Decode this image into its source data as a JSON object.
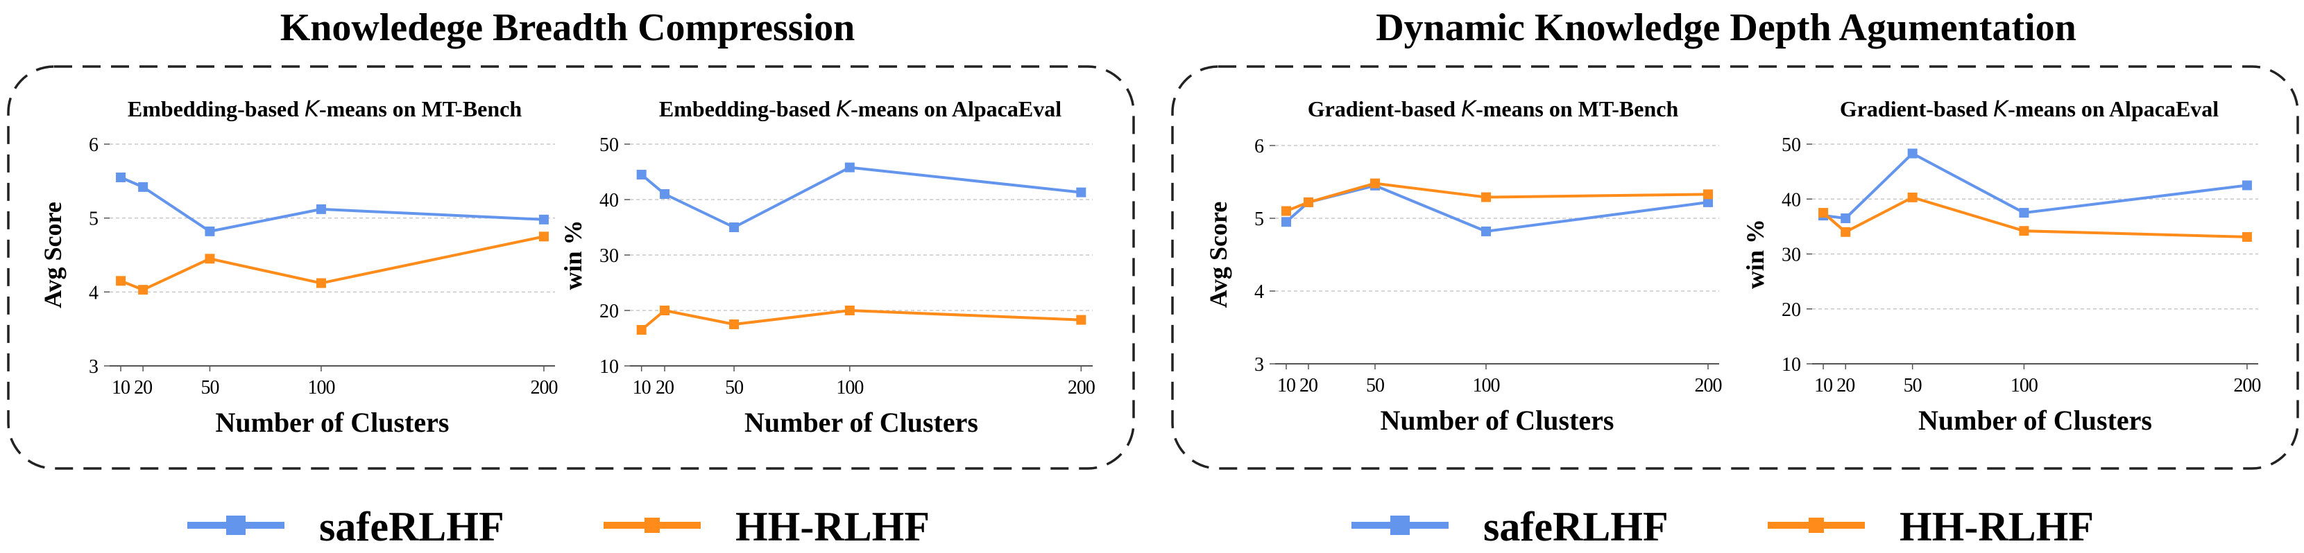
{
  "colors": {
    "safe": "#6495ED",
    "hh": "#FF8C1A",
    "grid": "#c8c8c8",
    "axis": "#555555",
    "text": "#000000",
    "box": "#222222"
  },
  "groups": [
    {
      "title": "Knowledege Breadth Compression"
    },
    {
      "title": "Dynamic Knowledge Depth Agumentation"
    }
  ],
  "legend": {
    "items": [
      {
        "label": "safeRLHF",
        "color": "#6495ED"
      },
      {
        "label": "HH-RLHF",
        "color": "#FF8C1A"
      }
    ]
  },
  "chart_data": [
    {
      "type": "line",
      "title_parts": [
        "Embedding-based ",
        "K",
        "-means on MT-Bench"
      ],
      "xlabel": "Number of Clusters",
      "ylabel": "Avg Score",
      "x": [
        10,
        20,
        50,
        100,
        200
      ],
      "xticks": [
        10,
        20,
        50,
        100,
        200
      ],
      "xtick_labels": [
        "10",
        "20",
        "50",
        "100",
        "200"
      ],
      "xlim": [
        5,
        205
      ],
      "ylim": [
        3,
        6
      ],
      "yticks": [
        3,
        4,
        5,
        6
      ],
      "grid": true,
      "series": [
        {
          "name": "safeRLHF",
          "color": "#6495ED",
          "values": [
            5.55,
            5.42,
            4.82,
            5.12,
            4.98
          ]
        },
        {
          "name": "HH-RLHF",
          "color": "#FF8C1A",
          "values": [
            4.15,
            4.03,
            4.45,
            4.12,
            4.75
          ]
        }
      ]
    },
    {
      "type": "line",
      "title_parts": [
        "Embedding-based ",
        "K",
        "-means on AlpacaEval"
      ],
      "xlabel": "Number of Clusters",
      "ylabel": "win %",
      "x": [
        10,
        20,
        50,
        100,
        200
      ],
      "xticks": [
        10,
        20,
        50,
        100,
        200
      ],
      "xtick_labels": [
        "10",
        "20",
        "50",
        "100",
        "200"
      ],
      "xlim": [
        5,
        205
      ],
      "ylim": [
        10,
        50
      ],
      "yticks": [
        10,
        20,
        30,
        40,
        50
      ],
      "grid": true,
      "series": [
        {
          "name": "safeRLHF",
          "color": "#6495ED",
          "values": [
            44.5,
            41.0,
            35.0,
            45.8,
            41.3
          ]
        },
        {
          "name": "HH-RLHF",
          "color": "#FF8C1A",
          "values": [
            16.5,
            20.0,
            17.5,
            20.0,
            18.3
          ]
        }
      ]
    },
    {
      "type": "line",
      "title_parts": [
        "Gradient-based ",
        "K",
        "-means on MT-Bench"
      ],
      "xlabel": "Number of Clusters",
      "ylabel": "Avg Score",
      "x": [
        10,
        20,
        50,
        100,
        200
      ],
      "xticks": [
        10,
        20,
        50,
        100,
        200
      ],
      "xtick_labels": [
        "10",
        "20",
        "50",
        "100",
        "200"
      ],
      "xlim": [
        5,
        205
      ],
      "ylim": [
        3,
        6
      ],
      "yticks": [
        3,
        4,
        5,
        6
      ],
      "grid": true,
      "series": [
        {
          "name": "safeRLHF",
          "color": "#6495ED",
          "values": [
            4.95,
            5.22,
            5.45,
            4.82,
            5.22
          ]
        },
        {
          "name": "HH-RLHF",
          "color": "#FF8C1A",
          "values": [
            5.1,
            5.22,
            5.48,
            5.29,
            5.33
          ]
        }
      ]
    },
    {
      "type": "line",
      "title_parts": [
        "Gradient-based ",
        "K",
        "-means on AlpacaEval"
      ],
      "xlabel": "Number of Clusters",
      "ylabel": "win %",
      "x": [
        10,
        20,
        50,
        100,
        200
      ],
      "xticks": [
        10,
        20,
        50,
        100,
        200
      ],
      "xtick_labels": [
        "10",
        "20",
        "50",
        "100",
        "200"
      ],
      "xlim": [
        5,
        205
      ],
      "ylim": [
        10,
        50
      ],
      "yticks": [
        10,
        20,
        30,
        40,
        50
      ],
      "grid": true,
      "series": [
        {
          "name": "safeRLHF",
          "color": "#6495ED",
          "values": [
            37.0,
            36.5,
            48.3,
            37.5,
            42.5
          ]
        },
        {
          "name": "HH-RLHF",
          "color": "#FF8C1A",
          "values": [
            37.5,
            34.0,
            40.3,
            34.2,
            33.1
          ]
        }
      ]
    }
  ]
}
